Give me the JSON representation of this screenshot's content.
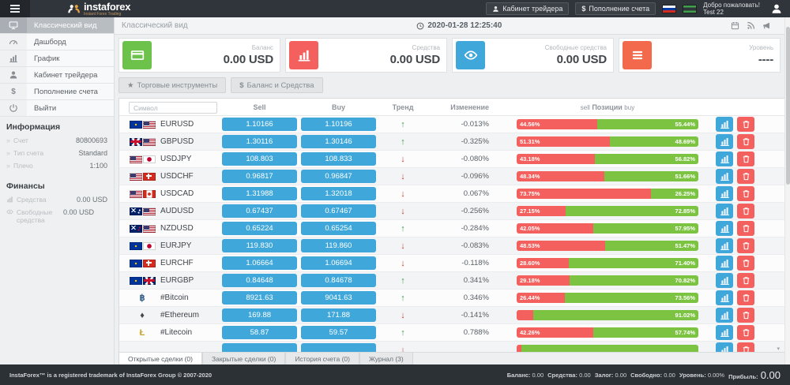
{
  "header": {
    "logo_text": "instaforex",
    "logo_subtext": "Instant Forex Trading",
    "cabinet_label": "Кабинет трейдера",
    "deposit_symbol": "$",
    "deposit_label": "Пополнение счета",
    "welcome": "Добро пожаловать!",
    "username": "Test 22"
  },
  "sidebar": {
    "items": [
      {
        "label": "Классический вид",
        "icon": "desktop-icon",
        "active": true
      },
      {
        "label": "Дашборд",
        "icon": "dashboard-icon",
        "active": false
      },
      {
        "label": "График",
        "icon": "chart-icon",
        "active": false
      },
      {
        "label": "Кабинет трейдера",
        "icon": "user-icon",
        "active": false
      },
      {
        "label": "Пополнение счета",
        "icon": "dollar-icon",
        "active": false
      },
      {
        "label": "Выйти",
        "icon": "power-icon",
        "active": false
      }
    ],
    "info_heading": "Информация",
    "info": [
      {
        "label": "Счет",
        "value": "80800693"
      },
      {
        "label": "Тип счета",
        "value": "Standard"
      },
      {
        "label": "Плечо",
        "value": "1:100"
      }
    ],
    "finance_heading": "Финансы",
    "finance": [
      {
        "label": "Средства",
        "value": "0.00 USD",
        "icon": "bars-icon"
      },
      {
        "label": "Свободные средства",
        "value": "0.00 USD",
        "icon": "eye-icon"
      }
    ]
  },
  "pagebar": {
    "title": "Классический вид",
    "datetime": "2020-01-28 12:25:40"
  },
  "cards": [
    {
      "label": "Баланс",
      "value": "0.00 USD",
      "icon": "credit-card-icon",
      "color": "#6dc24b"
    },
    {
      "label": "Средства",
      "value": "0.00 USD",
      "icon": "bar-chart-icon",
      "color": "#f3605e"
    },
    {
      "label": "Свободные средства",
      "value": "0.00 USD",
      "icon": "eye-icon",
      "color": "#3fa7da"
    },
    {
      "label": "Уровень",
      "value": "----",
      "icon": "list-icon",
      "color": "#f2694c"
    }
  ],
  "toolbar": {
    "star_glyph": "★",
    "instruments_label": "Торговые инструменты",
    "dollar_glyph": "$",
    "balance_label": "Баланс и Средства"
  },
  "table": {
    "search_placeholder": "Символ",
    "headers": {
      "sell": "Sell",
      "buy": "Buy",
      "trend": "Тренд",
      "change": "Изменение",
      "positions_sell": "sell",
      "positions_label": "Позиции",
      "positions_buy": "buy"
    },
    "trend_glyphs": {
      "up": "↑",
      "down": "↓"
    },
    "rows": [
      {
        "symbol": "EURUSD",
        "flags": [
          "eu",
          "us"
        ],
        "sell": "1.10166",
        "buy": "1.10196",
        "trend": "up",
        "change": "-0.013%",
        "pos_sell": 44.56,
        "pos_buy": 55.44,
        "pos_sell_label": "44.56%",
        "pos_buy_label": "55.44%"
      },
      {
        "symbol": "GBPUSD",
        "flags": [
          "gb",
          "us"
        ],
        "sell": "1.30116",
        "buy": "1.30146",
        "trend": "up",
        "change": "-0.325%",
        "pos_sell": 51.31,
        "pos_buy": 48.69,
        "pos_sell_label": "51.31%",
        "pos_buy_label": "48.69%"
      },
      {
        "symbol": "USDJPY",
        "flags": [
          "us",
          "jp"
        ],
        "sell": "108.803",
        "buy": "108.833",
        "trend": "down",
        "change": "-0.080%",
        "pos_sell": 43.18,
        "pos_buy": 56.82,
        "pos_sell_label": "43.18%",
        "pos_buy_label": "56.82%"
      },
      {
        "symbol": "USDCHF",
        "flags": [
          "us",
          "ch"
        ],
        "sell": "0.96817",
        "buy": "0.96847",
        "trend": "down",
        "change": "-0.096%",
        "pos_sell": 48.34,
        "pos_buy": 51.66,
        "pos_sell_label": "48.34%",
        "pos_buy_label": "51.66%"
      },
      {
        "symbol": "USDCAD",
        "flags": [
          "us",
          "ca"
        ],
        "sell": "1.31988",
        "buy": "1.32018",
        "trend": "down",
        "change": "0.067%",
        "pos_sell": 73.75,
        "pos_buy": 26.25,
        "pos_sell_label": "73.75%",
        "pos_buy_label": "26.25%"
      },
      {
        "symbol": "AUDUSD",
        "flags": [
          "au",
          "us"
        ],
        "sell": "0.67437",
        "buy": "0.67467",
        "trend": "down",
        "change": "-0.256%",
        "pos_sell": 27.15,
        "pos_buy": 72.85,
        "pos_sell_label": "27.15%",
        "pos_buy_label": "72.85%"
      },
      {
        "symbol": "NZDUSD",
        "flags": [
          "nz",
          "us"
        ],
        "sell": "0.65224",
        "buy": "0.65254",
        "trend": "up",
        "change": "-0.284%",
        "pos_sell": 42.05,
        "pos_buy": 57.95,
        "pos_sell_label": "42.05%",
        "pos_buy_label": "57.95%"
      },
      {
        "symbol": "EURJPY",
        "flags": [
          "eu",
          "jp"
        ],
        "sell": "119.830",
        "buy": "119.860",
        "trend": "down",
        "change": "-0.083%",
        "pos_sell": 48.53,
        "pos_buy": 51.47,
        "pos_sell_label": "48.53%",
        "pos_buy_label": "51.47%"
      },
      {
        "symbol": "EURCHF",
        "flags": [
          "eu",
          "ch"
        ],
        "sell": "1.06664",
        "buy": "1.06694",
        "trend": "down",
        "change": "-0.118%",
        "pos_sell": 28.6,
        "pos_buy": 71.4,
        "pos_sell_label": "28.60%",
        "pos_buy_label": "71.40%"
      },
      {
        "symbol": "EURGBP",
        "flags": [
          "eu",
          "gb"
        ],
        "sell": "0.84648",
        "buy": "0.84678",
        "trend": "up",
        "change": "0.341%",
        "pos_sell": 29.18,
        "pos_buy": 70.82,
        "pos_sell_label": "29.18%",
        "pos_buy_label": "70.82%"
      },
      {
        "symbol": "#Bitcoin",
        "crypto": {
          "glyph": "฿",
          "color": "#2f5b87"
        },
        "sell": "8921.63",
        "buy": "9041.63",
        "trend": "up",
        "change": "0.346%",
        "pos_sell": 26.44,
        "pos_buy": 73.56,
        "pos_sell_label": "26.44%",
        "pos_buy_label": "73.56%"
      },
      {
        "symbol": "#Ethereum",
        "crypto": {
          "glyph": "♦",
          "color": "#44484c"
        },
        "sell": "169.88",
        "buy": "171.88",
        "trend": "down",
        "change": "-0.141%",
        "pos_sell": 8.98,
        "pos_buy": 91.02,
        "pos_sell_label": "",
        "pos_buy_label": "91.02%"
      },
      {
        "symbol": "#Litecoin",
        "crypto": {
          "glyph": "Ł",
          "color": "#c9a227"
        },
        "sell": "58.87",
        "buy": "59.57",
        "trend": "up",
        "change": "0.788%",
        "pos_sell": 42.26,
        "pos_buy": 57.74,
        "pos_sell_label": "42.26%",
        "pos_buy_label": "57.74%"
      }
    ],
    "partial_row": {
      "symbol": "",
      "sell": "",
      "buy": "",
      "trend": "down",
      "change": "",
      "pos_sell": 2.5,
      "pos_buy": 97.5,
      "pos_sell_label": "",
      "pos_buy_label": ""
    }
  },
  "tabs": [
    {
      "label": "Открытые сделки (0)",
      "active": true
    },
    {
      "label": "Закрытые сделки (0)",
      "active": false
    },
    {
      "label": "История счета (0)",
      "active": false
    },
    {
      "label": "Журнал (3)",
      "active": false
    }
  ],
  "footer": {
    "copyright": "InstaForex™ is a registered trademark of InstaForex Group © 2007-2020",
    "stats": [
      {
        "label": "Баланс:",
        "value": "0.00"
      },
      {
        "label": "Средства:",
        "value": "0.00"
      },
      {
        "label": "Залог:",
        "value": "0.00"
      },
      {
        "label": "Свободно:",
        "value": "0.00"
      },
      {
        "label": "Уровень:",
        "value": "0.00%"
      },
      {
        "label": "Прибыль:",
        "value": "0.00"
      }
    ]
  }
}
